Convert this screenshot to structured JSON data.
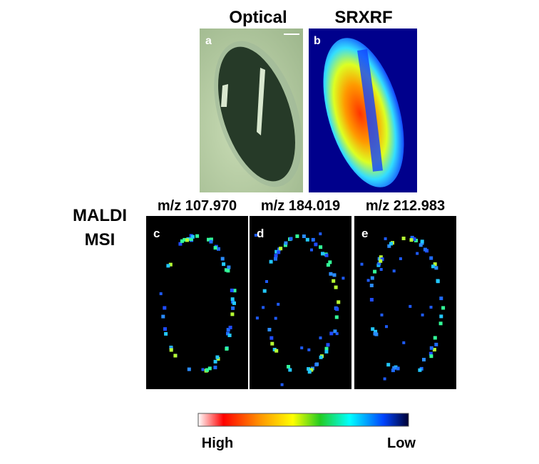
{
  "header": {
    "optical": "Optical",
    "srxrf": "SRXRF"
  },
  "panels": {
    "a": "a",
    "b": "b",
    "c": "c",
    "d": "d",
    "e": "e"
  },
  "maldi": {
    "line1": "MALDI",
    "line2": "MSI",
    "masses": [
      "m/z 107.970",
      "m/z 184.019",
      "m/z 212.983"
    ]
  },
  "colorbar": {
    "high": "High",
    "low": "Low"
  }
}
